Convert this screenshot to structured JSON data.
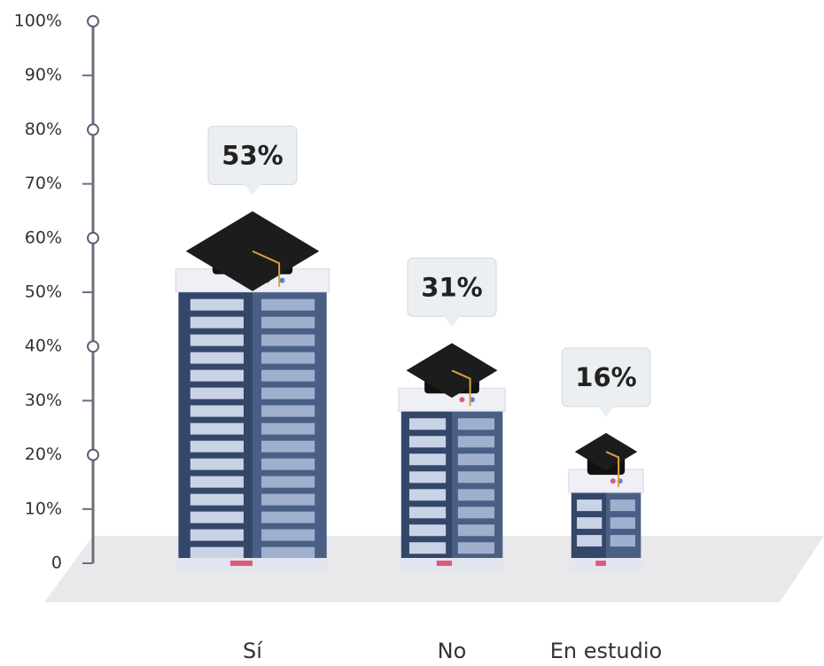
{
  "chart_data": {
    "type": "bar",
    "categories": [
      "Sí",
      "No",
      "En estudio"
    ],
    "values": [
      53,
      31,
      16
    ],
    "value_labels": [
      "53%",
      "31%",
      "16%"
    ],
    "color": "#34466a",
    "ylim": [
      0,
      100
    ],
    "yticks": [
      0,
      {
        "value": 10,
        "label": "10%"
      },
      {
        "value": 20,
        "label": "20%"
      },
      {
        "value": 30,
        "label": "30%"
      },
      {
        "value": 40,
        "label": "40%"
      },
      {
        "value": 50,
        "label": "50%"
      },
      {
        "value": 60,
        "label": "60%"
      },
      {
        "value": 70,
        "label": "70%"
      },
      {
        "value": 80,
        "label": "80%"
      },
      {
        "value": 90,
        "label": "90%"
      },
      {
        "value": 100,
        "label": "100%"
      }
    ]
  }
}
